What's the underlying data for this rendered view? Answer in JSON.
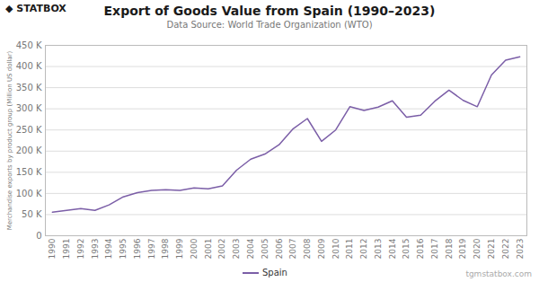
{
  "chart_data": {
    "type": "line",
    "title": "Export of Goods Value from Spain (1990–2023)",
    "subtitle": "Data Source: World Trade Organization (WTO)",
    "ylabel": "Merchandise exports by product group (Million US dollar)",
    "annotations": [
      "◆ STATBOX",
      "tgmstatbox.com"
    ],
    "x": [
      1990,
      1991,
      1992,
      1993,
      1994,
      1995,
      1996,
      1997,
      1998,
      1999,
      2000,
      2001,
      2002,
      2003,
      2004,
      2005,
      2006,
      2007,
      2008,
      2009,
      2010,
      2011,
      2012,
      2013,
      2014,
      2015,
      2016,
      2017,
      2018,
      2019,
      2020,
      2021,
      2022,
      2023
    ],
    "series": [
      {
        "name": "Spain",
        "color": "#7B5EA7",
        "values": [
          55500,
          60000,
          64000,
          60000,
          73000,
          92000,
          102000,
          107000,
          109000,
          107000,
          113000,
          111000,
          118000,
          155000,
          181000,
          193000,
          215000,
          253000,
          277000,
          223000,
          250000,
          305000,
          296000,
          304000,
          319000,
          280000,
          285000,
          318000,
          344000,
          320000,
          305000,
          380000,
          415000,
          423000
        ]
      }
    ],
    "xlim": [
      1989.5,
      2023.5
    ],
    "xticks": [
      1990,
      1991,
      1992,
      1993,
      1994,
      1995,
      1996,
      1997,
      1998,
      1999,
      2000,
      2001,
      2002,
      2003,
      2004,
      2005,
      2006,
      2007,
      2008,
      2009,
      2010,
      2011,
      2012,
      2013,
      2014,
      2015,
      2016,
      2017,
      2018,
      2019,
      2020,
      2021,
      2022,
      2023
    ],
    "ylim": [
      0,
      450000
    ],
    "yticks": [
      0,
      {
        "value": 50000,
        "label": "50 K"
      },
      {
        "value": 100000,
        "label": "100 K"
      },
      {
        "value": 150000,
        "label": "150 K"
      },
      {
        "value": 200000,
        "label": "200 K"
      },
      {
        "value": 250000,
        "label": "250 K"
      },
      {
        "value": 300000,
        "label": "300 K"
      },
      {
        "value": 350000,
        "label": "350 K"
      },
      {
        "value": 400000,
        "label": "400 K"
      },
      {
        "value": 450000,
        "label": "450 K"
      }
    ],
    "grid": true,
    "legend": "bottom"
  }
}
